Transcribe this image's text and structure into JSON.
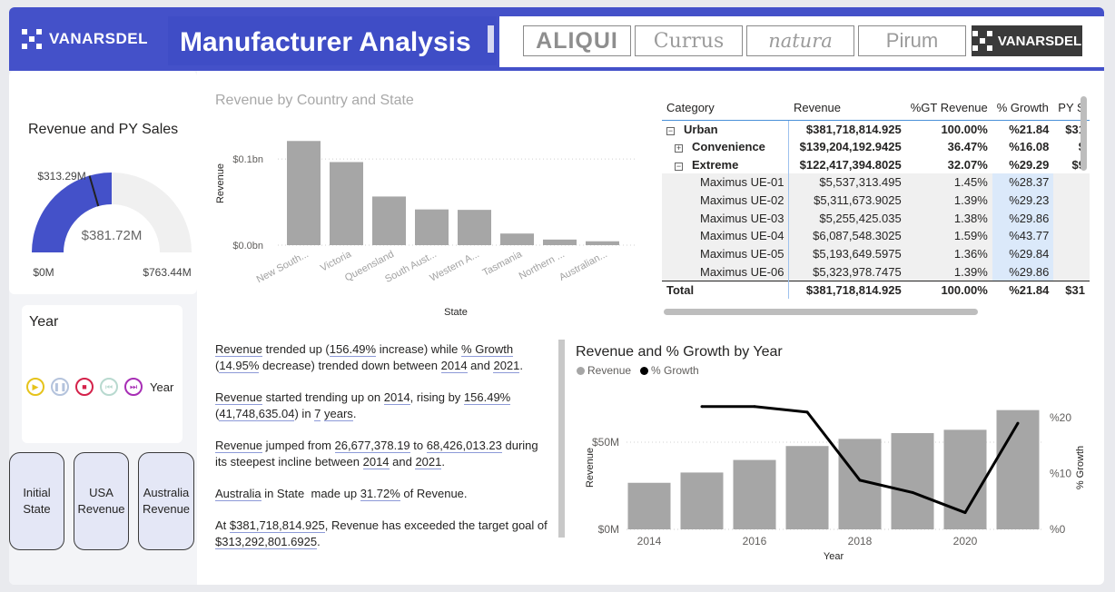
{
  "header": {
    "logo_text": "VANARSDEL",
    "title": "Manufacturer Analysis",
    "brands": [
      "ALIQUI",
      "Currus",
      "natura",
      "Pirum",
      "VANARSDEL"
    ]
  },
  "gauge": {
    "title": "Revenue and PY Sales",
    "value_label": "$381.72M",
    "target_label": "$313.29M",
    "min_label": "$0M",
    "max_label": "$763.44M",
    "value": 381.72,
    "target": 313.29,
    "min": 0,
    "max": 763.44,
    "fill_color": "#4451c9",
    "track_color": "#f0f0f0"
  },
  "year_slicer": {
    "title": "Year",
    "play_label": "Year",
    "icons": [
      "play-icon",
      "pause-icon",
      "stop-icon",
      "previous-icon",
      "next-icon"
    ]
  },
  "nav_buttons": [
    {
      "label": "Initial State"
    },
    {
      "label": "USA Revenue"
    },
    {
      "label": "Australia Revenue"
    }
  ],
  "bar_chart": {
    "title": "Revenue by Country and State",
    "xlabel": "State",
    "ylabel": "Revenue",
    "ytick_labels": [
      "$0.0bn",
      "$0.1bn"
    ]
  },
  "combo_chart": {
    "title": "Revenue and % Growth by Year",
    "legend": [
      "Revenue",
      "% Growth"
    ],
    "xlabel": "Year",
    "ylabel_left": "Revenue",
    "ylabel_right": "% Growth",
    "left_ticks": [
      "$0M",
      "$50M"
    ],
    "right_ticks": [
      "%0",
      "%10",
      "%20"
    ],
    "x_ticks": [
      "2014",
      "2016",
      "2018",
      "2020"
    ]
  },
  "chart_data": [
    {
      "type": "bar",
      "title": "Revenue by Country and State",
      "xlabel": "State",
      "ylabel": "Revenue",
      "categories": [
        "New South...",
        "Victoria",
        "Queensland",
        "South Aust...",
        "Western A...",
        "Tasmania",
        "Northern ...",
        "Australian..."
      ],
      "values": [
        0.121,
        0.0965,
        0.0565,
        0.0415,
        0.041,
        0.0135,
        0.0065,
        0.0045
      ],
      "unit": "bn",
      "ylim": [
        0,
        0.135
      ],
      "color": "#a6a6a6"
    },
    {
      "type": "bar+line",
      "title": "Revenue and % Growth by Year",
      "x": [
        2014,
        2015,
        2016,
        2017,
        2018,
        2019,
        2020,
        2021
      ],
      "series": [
        {
          "name": "Revenue",
          "type": "bar",
          "axis": "left",
          "values": [
            26.7,
            32.6,
            39.8,
            47.8,
            51.9,
            55.2,
            57.1,
            68.4
          ],
          "unit": "M",
          "color": "#a6a6a6"
        },
        {
          "name": "% Growth",
          "type": "line",
          "axis": "right",
          "values": [
            22.0,
            22.0,
            21.0,
            8.8,
            6.6,
            3.0,
            19.0
          ],
          "x": [
            2015,
            2016,
            2017,
            2018,
            2019,
            2020,
            2021
          ],
          "color": "#000000"
        }
      ],
      "ylim_left": [
        0,
        70
      ],
      "ylim_right": [
        0,
        24
      ]
    }
  ],
  "matrix": {
    "columns": [
      "Category",
      "Revenue",
      "%GT Revenue",
      "% Growth",
      "PY S"
    ],
    "rows": [
      {
        "level": 0,
        "expander": "⊟",
        "category": "Urban",
        "revenue": "$381,718,814.925",
        "gt": "100.00%",
        "growth": "%21.84",
        "py": "$31"
      },
      {
        "level": 1,
        "expander": "⊞",
        "category": "Convenience",
        "revenue": "$139,204,192.9425",
        "gt": "36.47%",
        "growth": "%16.08",
        "py": "$"
      },
      {
        "level": 1,
        "expander": "⊟",
        "category": "Extreme",
        "revenue": "$122,417,394.8025",
        "gt": "32.07%",
        "growth": "%29.29",
        "py": "$9"
      },
      {
        "level": 2,
        "expander": "",
        "category": "Maximus UE-01",
        "revenue": "$5,537,313.495",
        "gt": "1.45%",
        "growth": "%28.37",
        "py": ""
      },
      {
        "level": 2,
        "expander": "",
        "category": "Maximus UE-02",
        "revenue": "$5,311,673.9025",
        "gt": "1.39%",
        "growth": "%29.23",
        "py": ""
      },
      {
        "level": 2,
        "expander": "",
        "category": "Maximus UE-03",
        "revenue": "$5,255,425.035",
        "gt": "1.38%",
        "growth": "%29.86",
        "py": ""
      },
      {
        "level": 2,
        "expander": "",
        "category": "Maximus UE-04",
        "revenue": "$6,087,548.3025",
        "gt": "1.59%",
        "growth": "%43.77",
        "py": ""
      },
      {
        "level": 2,
        "expander": "",
        "category": "Maximus UE-05",
        "revenue": "$5,193,649.5975",
        "gt": "1.36%",
        "growth": "%29.84",
        "py": ""
      },
      {
        "level": 2,
        "expander": "",
        "category": "Maximus UE-06",
        "revenue": "$5,323,978.7475",
        "gt": "1.39%",
        "growth": "%29.86",
        "py": ""
      }
    ],
    "total": {
      "category": "Total",
      "revenue": "$381,718,814.925",
      "gt": "100.00%",
      "growth": "%21.84",
      "py": "$31"
    }
  },
  "narrative": {
    "p1": {
      "a": "Revenue",
      "b": " trended up (",
      "c": "156.49%",
      "d": " increase) while ",
      "e": "% Growth",
      "f": " (",
      "g": "14.95%",
      "h": " decrease) trended down between ",
      "i": "2014",
      "j": " and ",
      "k": "2021",
      "l": "."
    },
    "p2": {
      "a": "Revenue",
      "b": " started trending up on ",
      "c": "2014",
      "d": ", rising by ",
      "e": "156.49%",
      "f": " (",
      "g": "41,748,635.04",
      "h": ") in ",
      "i": "7",
      "j": " ",
      "k": "years",
      "l": "."
    },
    "p3": {
      "a": "Revenue",
      "b": " jumped from ",
      "c": "26,677,378.19",
      "d": " to ",
      "e": "68,426,013.23",
      "f": " during its steepest incline between ",
      "g": "2014",
      "h": " and ",
      "i": "2021",
      "j": "."
    },
    "p4": {
      "a": "Australia",
      "b": " in State  made up ",
      "c": "31.72%",
      "d": " of Revenue."
    },
    "p5": {
      "a": "At ",
      "b": "$381,718,814.925",
      "c": ", Revenue has exceeded the target goal of ",
      "d": "$313,292,801.6925",
      "e": "."
    }
  }
}
